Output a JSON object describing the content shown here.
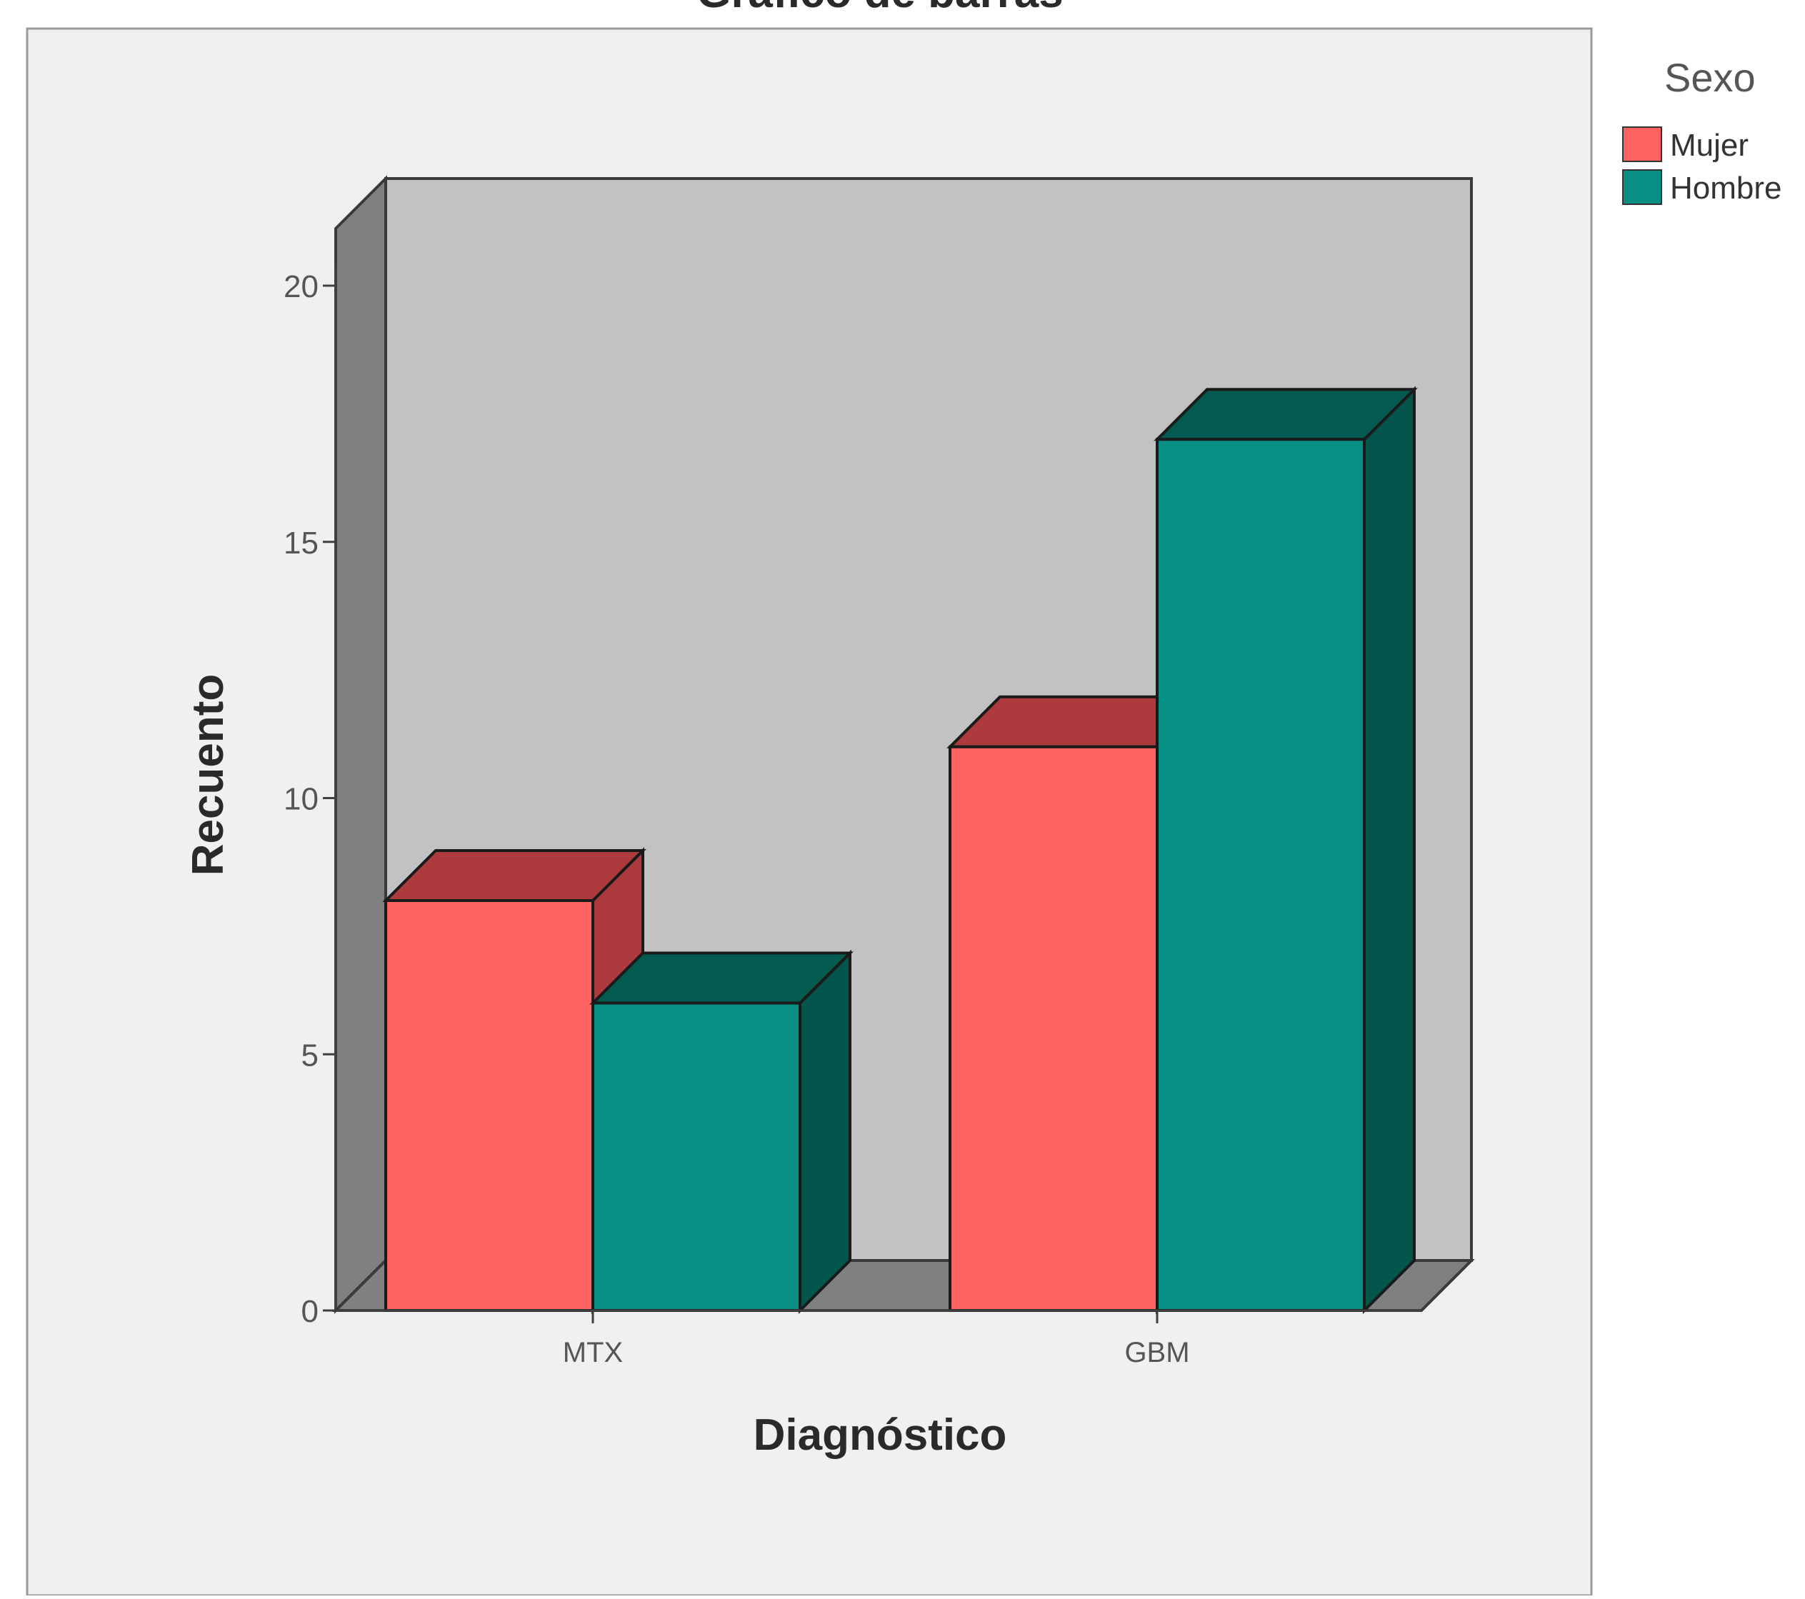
{
  "chart_data": {
    "type": "bar",
    "title": "Gráfico de barras",
    "xlabel": "Diagnóstico",
    "ylabel": "Recuento",
    "categories": [
      "MTX",
      "GBM"
    ],
    "series": [
      {
        "name": "Mujer",
        "values": [
          8,
          11
        ]
      },
      {
        "name": "Hombre",
        "values": [
          6,
          17
        ]
      }
    ],
    "ylim": [
      0,
      20
    ],
    "yticks": [
      0,
      5,
      10,
      15,
      20
    ],
    "legend_title": "Sexo",
    "legend_position": "top-right, outside plot",
    "grid": false,
    "three_d": true
  },
  "colors": {
    "figure_background": "#f0f0f0",
    "wall": "#c2c2c2",
    "floor_side": "#808080",
    "series_front": [
      "#fe6361",
      "#078f84"
    ],
    "series_top": [
      "#ad3a3c",
      "#045a50"
    ],
    "series_side": [
      "#ad3a3c",
      "#03554c"
    ],
    "axis": "#404040",
    "text": "#2a2a2a"
  }
}
